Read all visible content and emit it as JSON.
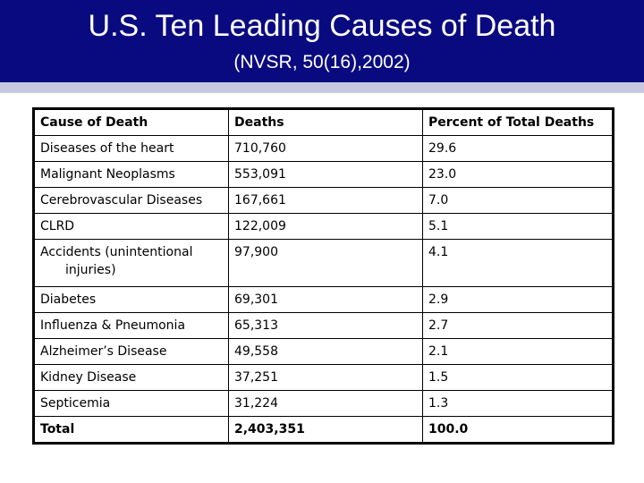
{
  "slide": {
    "title": "U.S. Ten Leading Causes of Death",
    "subtitle": "(NVSR, 50(16),2002)"
  },
  "table": {
    "headers": [
      "Cause of Death",
      "Deaths",
      "Percent of Total Deaths"
    ],
    "rows": [
      [
        "Diseases of the heart",
        "710,760",
        "29.6"
      ],
      [
        "Malignant Neoplasms",
        "553,091",
        "23.0"
      ],
      [
        "Cerebrovascular Diseases",
        "167,661",
        "7.0"
      ],
      [
        "CLRD",
        "122,009",
        "5.1"
      ],
      [
        "Accidents (unintentional",
        "97,900",
        "4.1"
      ],
      [
        "Diabetes",
        "69,301",
        "2.9"
      ],
      [
        "Influenza & Pneumonia",
        "65,313",
        "2.7"
      ],
      [
        "Alzheimer’s Disease",
        "49,558",
        "2.1"
      ],
      [
        "Kidney Disease",
        "37,251",
        "1.5"
      ],
      [
        "Septicemia",
        "31,224",
        "1.3"
      ]
    ],
    "accidents_line2": "injuries)",
    "total": [
      "Total",
      "2,403,351",
      "100.0"
    ]
  },
  "colors": {
    "header_bg": "#0a0a80",
    "header_band": "#c8c8e0",
    "text": "#000000"
  }
}
